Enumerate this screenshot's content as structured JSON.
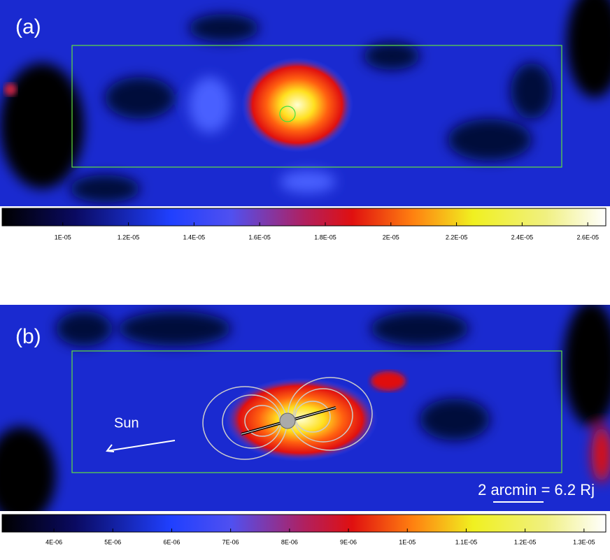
{
  "panels": [
    {
      "label": "(a)",
      "colorbar": {
        "range": [
          8.15e-06,
          2.655e-05
        ],
        "ticks": [
          {
            "value": 1e-05,
            "label": "1E-05"
          },
          {
            "value": 1.2e-05,
            "label": "1.2E-05"
          },
          {
            "value": 1.4e-05,
            "label": "1.4E-05"
          },
          {
            "value": 1.6e-05,
            "label": "1.6E-05"
          },
          {
            "value": 1.8e-05,
            "label": "1.8E-05"
          },
          {
            "value": 2e-05,
            "label": "2E-05"
          },
          {
            "value": 2.2e-05,
            "label": "2.2E-05"
          },
          {
            "value": 2.4e-05,
            "label": "2.4E-05"
          },
          {
            "value": 2.6e-05,
            "label": "2.6E-05"
          }
        ]
      }
    },
    {
      "label": "(b)",
      "annotations": {
        "direction": "Sun",
        "scale": "2 arcmin = 6.2 Rj"
      },
      "colorbar": {
        "range": [
          3.12e-06,
          1.337e-05
        ],
        "ticks": [
          {
            "value": 4e-06,
            "label": "4E-06"
          },
          {
            "value": 5e-06,
            "label": "5E-06"
          },
          {
            "value": 6e-06,
            "label": "6E-06"
          },
          {
            "value": 7e-06,
            "label": "7E-06"
          },
          {
            "value": 8e-06,
            "label": "8E-06"
          },
          {
            "value": 9e-06,
            "label": "9E-06"
          },
          {
            "value": 1e-05,
            "label": "1E-05"
          },
          {
            "value": 1.1e-05,
            "label": "1.1E-05"
          },
          {
            "value": 1.2e-05,
            "label": "1.2E-05"
          },
          {
            "value": 1.3e-05,
            "label": "1.3E-05"
          }
        ]
      }
    }
  ]
}
